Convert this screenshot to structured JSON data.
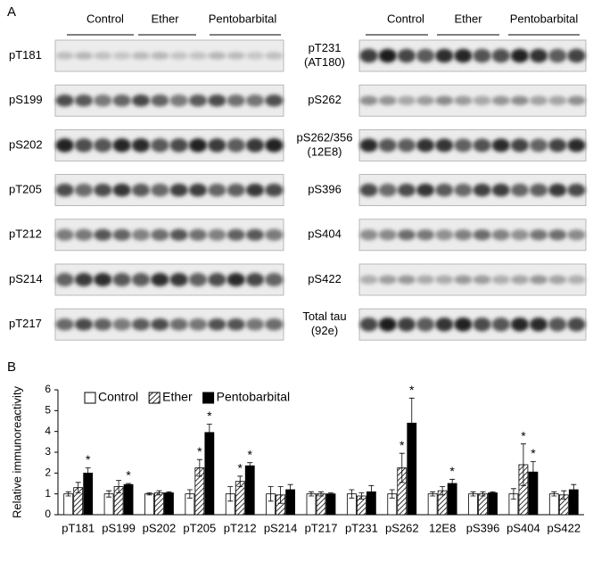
{
  "panel_a": {
    "label": "A",
    "left": {
      "groups": [
        "Control",
        "Ether",
        "Pentobarbital"
      ],
      "blots": [
        [
          "pT181"
        ],
        [
          "pS199"
        ],
        [
          "pS202"
        ],
        [
          "pT205"
        ],
        [
          "pT212"
        ],
        [
          "pS214"
        ],
        [
          "pT217"
        ]
      ]
    },
    "right": {
      "groups": [
        "Control",
        "Ether",
        "Pentobarbital"
      ],
      "blots": [
        [
          "pT231",
          "(AT180)"
        ],
        [
          "pS262"
        ],
        [
          "pS262/356",
          "(12E8)"
        ],
        [
          "pS396"
        ],
        [
          "pS404"
        ],
        [
          "pS422"
        ],
        [
          "Total tau",
          "(92e)"
        ]
      ]
    }
  },
  "panel_b": {
    "label": "B"
  },
  "chart_data": {
    "type": "bar",
    "y_label": "Relative immunoreactivity",
    "categories": [
      "pT181",
      "pS199",
      "pS202",
      "pT205",
      "pT212",
      "pS214",
      "pT217",
      "pT231",
      "pS262",
      "12E8",
      "pS396",
      "pS404",
      "pS422"
    ],
    "series": [
      {
        "name": "Control",
        "color": "#ffffff",
        "hatch": false,
        "values": [
          1,
          1,
          1,
          1,
          1,
          1,
          1,
          1,
          1,
          1,
          1,
          1,
          1
        ],
        "errors": [
          0.1,
          0.15,
          0.05,
          0.2,
          0.35,
          0.35,
          0.1,
          0.2,
          0.2,
          0.1,
          0.1,
          0.25,
          0.1
        ],
        "significance": [
          null,
          null,
          null,
          null,
          null,
          null,
          null,
          null,
          null,
          null,
          null,
          null,
          null
        ]
      },
      {
        "name": "Ether",
        "color": "#ffffff",
        "hatch": true,
        "values": [
          1.3,
          1.35,
          1.05,
          2.25,
          1.6,
          0.95,
          1.0,
          0.9,
          2.25,
          1.15,
          1.0,
          2.4,
          0.95
        ],
        "errors": [
          0.25,
          0.3,
          0.1,
          0.4,
          0.25,
          0.4,
          0.1,
          0.15,
          0.7,
          0.2,
          0.1,
          1.0,
          0.2
        ],
        "significance": [
          null,
          null,
          null,
          "*",
          "*",
          null,
          null,
          null,
          "*",
          null,
          null,
          "*",
          null
        ]
      },
      {
        "name": "Pentobarbital",
        "color": "#000000",
        "hatch": false,
        "values": [
          2.0,
          1.45,
          1.05,
          3.95,
          2.35,
          1.2,
          1.0,
          1.1,
          4.4,
          1.5,
          1.05,
          2.05,
          1.2
        ],
        "errors": [
          0.25,
          0.05,
          0.05,
          0.4,
          0.15,
          0.25,
          0.05,
          0.3,
          1.2,
          0.2,
          0.05,
          0.5,
          0.25
        ],
        "significance": [
          "*",
          "*",
          null,
          "*",
          "*",
          null,
          null,
          null,
          "*",
          "*",
          null,
          "*",
          null
        ]
      }
    ],
    "ylim": [
      0,
      6
    ],
    "yticks": [
      0,
      1,
      2,
      3,
      4,
      5,
      6
    ],
    "legend": "upper left"
  }
}
